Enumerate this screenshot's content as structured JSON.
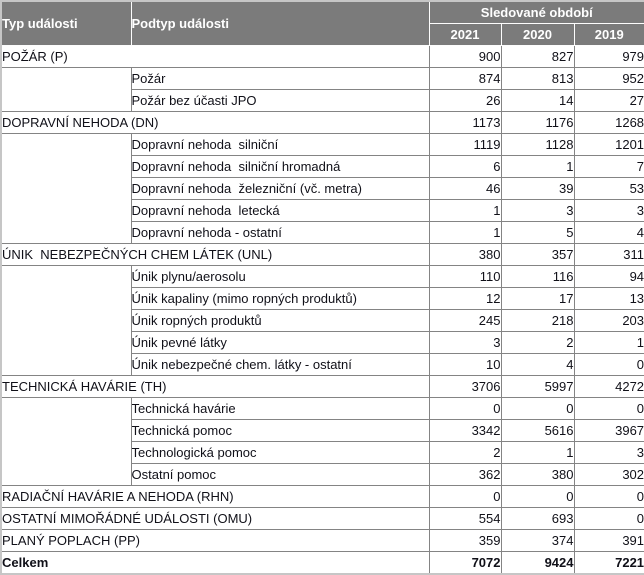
{
  "table": {
    "header": {
      "col_type": "Typ události",
      "col_subtype": "Podtyp události",
      "period_label": "Sledované období",
      "years": [
        "2021",
        "2020",
        "2019"
      ]
    },
    "sections": [
      {
        "label": "POŽÁR (P)",
        "values": [
          "900",
          "827",
          "979"
        ],
        "subrows": [
          {
            "label": "Požár",
            "values": [
              "874",
              "813",
              "952"
            ]
          },
          {
            "label": "Požár bez účasti JPO",
            "values": [
              "26",
              "14",
              "27"
            ]
          }
        ]
      },
      {
        "label": "DOPRAVNÍ NEHODA (DN)",
        "values": [
          "1173",
          "1176",
          "1268"
        ],
        "subrows": [
          {
            "label": "Dopravní nehoda  silniční",
            "values": [
              "1119",
              "1128",
              "1201"
            ]
          },
          {
            "label": "Dopravní nehoda  silniční hromadná",
            "values": [
              "6",
              "1",
              "7"
            ]
          },
          {
            "label": "Dopravní nehoda  železniční (vč. metra)",
            "values": [
              "46",
              "39",
              "53"
            ]
          },
          {
            "label": "Dopravní nehoda  letecká",
            "values": [
              "1",
              "3",
              "3"
            ]
          },
          {
            "label": "Dopravní nehoda - ostatní",
            "values": [
              "1",
              "5",
              "4"
            ]
          }
        ]
      },
      {
        "label": "ÚNIK  NEBEZPEČNÝCH CHEM LÁTEK (UNL)",
        "values": [
          "380",
          "357",
          "311"
        ],
        "subrows": [
          {
            "label": "Únik plynu/aerosolu",
            "values": [
              "110",
              "116",
              "94"
            ]
          },
          {
            "label": "Únik kapaliny (mimo ropných produktů)",
            "values": [
              "12",
              "17",
              "13"
            ]
          },
          {
            "label": "Únik ropných produktů",
            "values": [
              "245",
              "218",
              "203"
            ]
          },
          {
            "label": "Únik pevné látky",
            "values": [
              "3",
              "2",
              "1"
            ]
          },
          {
            "label": "Únik nebezpečné chem. látky - ostatní",
            "values": [
              "10",
              "4",
              "0"
            ]
          }
        ]
      },
      {
        "label": "TECHNICKÁ HAVÁRIE (TH)",
        "values": [
          "3706",
          "5997",
          "4272"
        ],
        "subrows": [
          {
            "label": "Technická havárie",
            "values": [
              "0",
              "0",
              "0"
            ]
          },
          {
            "label": "Technická pomoc",
            "values": [
              "3342",
              "5616",
              "3967"
            ]
          },
          {
            "label": "Technologická pomoc",
            "values": [
              "2",
              "1",
              "3"
            ]
          },
          {
            "label": "Ostatní pomoc",
            "values": [
              "362",
              "380",
              "302"
            ]
          }
        ]
      },
      {
        "label": "RADIAČNÍ HAVÁRIE A NEHODA (RHN)",
        "values": [
          "0",
          "0",
          "0"
        ],
        "subrows": []
      },
      {
        "label": "OSTATNÍ MIMOŘÁDNÉ UDÁLOSTI (OMU)",
        "values": [
          "554",
          "693",
          "0"
        ],
        "subrows": []
      },
      {
        "label": "PLANÝ POPLACH (PP)",
        "values": [
          "359",
          "374",
          "391"
        ],
        "subrows": []
      }
    ],
    "total": {
      "label": "Celkem",
      "values": [
        "7072",
        "9424",
        "7221"
      ]
    }
  },
  "colors": {
    "header_bg": "#7b7b7b",
    "header_text": "#ffffff",
    "category_row_bg": "#ccccff",
    "total_row_bg": "#3366ff",
    "total_row_text": "#ffffff",
    "cell_border": "#848484",
    "outer_border": "#c6c6c6",
    "body_text": "#101018"
  }
}
